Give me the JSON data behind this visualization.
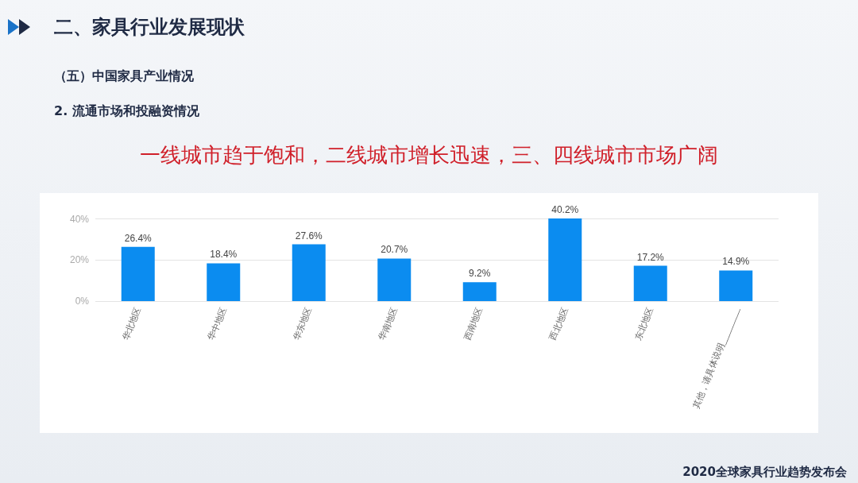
{
  "chart_data": {
    "type": "bar",
    "title": "一线城市趋于饱和，二线城市增长迅速，三、四线城市市场广阔",
    "annotations": [
      "二、家具行业发展现状",
      "（五）中国家具产业情况",
      "2. 流通市场和投融资情况",
      "2020全球家具行业趋势发布会"
    ],
    "categories": [
      "华北地区",
      "华中地区",
      "华东地区",
      "华南地区",
      "西南地区",
      "西北地区",
      "东北地区",
      "其他，请具体说明________"
    ],
    "values": [
      26.4,
      18.4,
      27.6,
      20.7,
      9.2,
      40.2,
      17.2,
      14.9
    ],
    "value_labels": [
      "26.4%",
      "18.4%",
      "27.6%",
      "20.7%",
      "9.2%",
      "40.2%",
      "17.2%",
      "14.9%"
    ],
    "color": "#0b8cf0",
    "ylim": [
      0,
      40.2
    ],
    "yticks": [
      {
        "value": 0,
        "label": "0%"
      },
      {
        "value": 20,
        "label": "20%"
      },
      {
        "value": 40,
        "label": "40%"
      }
    ],
    "grid": "y"
  }
}
